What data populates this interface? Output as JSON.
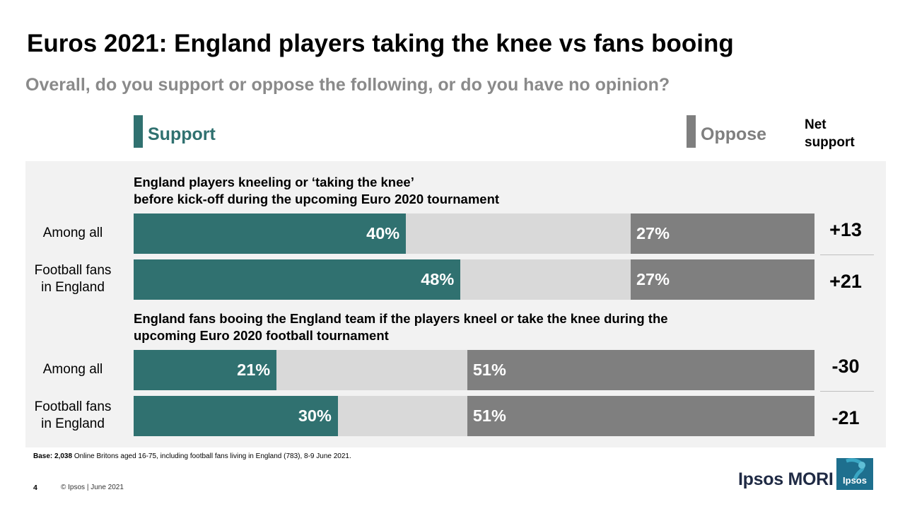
{
  "title": "Euros 2021: England players taking the knee vs fans booing",
  "subtitle": "Overall, do you support or oppose the following, or do you have no opinion?",
  "legend": {
    "support_label": "Support",
    "oppose_label": "Oppose",
    "net_label_line1": "Net",
    "net_label_line2": "support"
  },
  "colors": {
    "support": "#307170",
    "oppose": "#7f7f7f",
    "no_opinion": "#d9d9d9",
    "panel": "#f2f2f2"
  },
  "chart_data": {
    "type": "bar",
    "orientation": "horizontal",
    "stacked": true,
    "xlim": [
      0,
      100
    ],
    "groups": [
      {
        "title_line1": "England players kneeling or ‘taking the knee’",
        "title_line2": "before kick-off during the upcoming Euro 2020 tournament",
        "rows": [
          {
            "label_line1": "Among all",
            "label_line2": "",
            "support": 40,
            "oppose": 27,
            "support_label": "40%",
            "oppose_label": "27%",
            "net": "+13"
          },
          {
            "label_line1": "Football fans",
            "label_line2": "in England",
            "support": 48,
            "oppose": 27,
            "support_label": "48%",
            "oppose_label": "27%",
            "net": "+21"
          }
        ]
      },
      {
        "title_line1": "England fans booing the England team if the players kneel or take the knee during the",
        "title_line2": "upcoming Euro 2020 football tournament",
        "rows": [
          {
            "label_line1": "Among all",
            "label_line2": "",
            "support": 21,
            "oppose": 51,
            "support_label": "21%",
            "oppose_label": "51%",
            "net": "-30"
          },
          {
            "label_line1": "Football fans",
            "label_line2": "in England",
            "support": 30,
            "oppose": 51,
            "support_label": "30%",
            "oppose_label": "51%",
            "net": "-21"
          }
        ]
      }
    ]
  },
  "footer": {
    "base_bold": "Base: 2,038",
    "base_text": " Online Britons aged 16-75, including football fans living in England (783), 8-9 June 2021.",
    "page_number": "4",
    "copyright": "© Ipsos | June 2021",
    "brand": "Ipsos MORI",
    "logo_text": "Ipsos"
  }
}
